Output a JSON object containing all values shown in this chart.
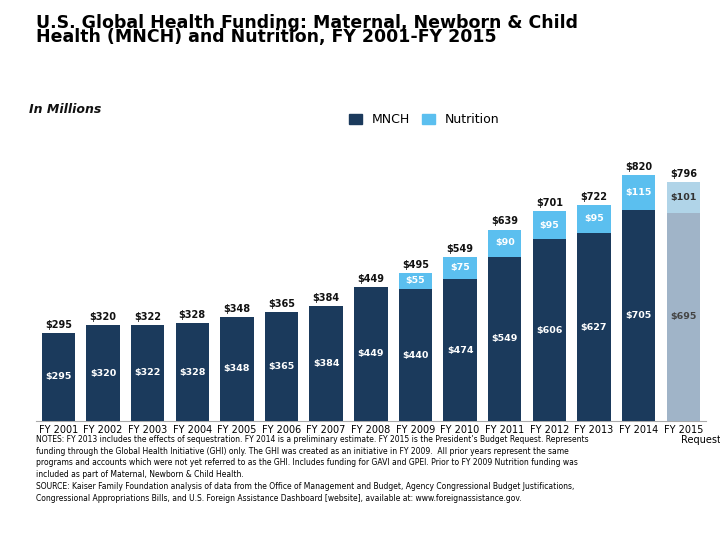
{
  "years": [
    "FY 2001",
    "FY 2002",
    "FY 2003",
    "FY 2004",
    "FY 2005",
    "FY 2006",
    "FY 2007",
    "FY 2008",
    "FY 2009",
    "FY 2010",
    "FY 2011",
    "FY 2012",
    "FY 2013",
    "FY 2014",
    "FY 2015"
  ],
  "mnch": [
    295,
    320,
    322,
    328,
    348,
    365,
    384,
    449,
    440,
    474,
    549,
    606,
    627,
    705,
    695
  ],
  "nutrition": [
    0,
    0,
    0,
    0,
    0,
    0,
    0,
    0,
    55,
    75,
    90,
    95,
    95,
    115,
    101
  ],
  "totals": [
    295,
    320,
    322,
    328,
    348,
    365,
    384,
    449,
    495,
    549,
    639,
    701,
    722,
    820,
    796
  ],
  "mnch_color_regular": "#1b3a5c",
  "mnch_color_request": "#a0b4c8",
  "nutrition_color_regular": "#5bbfef",
  "nutrition_color_request": "#b0d4e8",
  "title_line1": "U.S. Global Health Funding: Maternal, Newborn & Child",
  "title_line2": "Health (MNCH) and Nutrition, FY 2001-FY 2015",
  "subtitle": "In Millions",
  "notes_line1": "NOTES: FY 2013 includes the effects of sequestration. FY 2014 is a preliminary estimate. FY 2015 is the President’s Budget Request. Represents",
  "notes_line2": "funding through the Global Health Initiative (GHI) only. The GHI was created as an initiative in FY 2009.  All prior years represent the same",
  "notes_line3": "programs and accounts which were not yet referred to as the GHI. Includes funding for GAVI and GPEI. Prior to FY 2009 Nutrition funding was",
  "notes_line4": "included as part of Maternal, Newborn & Child Health.",
  "notes_line5": "SOURCE: Kaiser Family Foundation analysis of data from the Office of Management and Budget, Agency Congressional Budget Justifications,",
  "notes_line6": "Congressional Appropriations Bills, and U.S. Foreign Assistance Dashboard [website], available at: www.foreignassistance.gov.",
  "ylim": [
    0,
    900
  ],
  "bar_width": 0.75
}
